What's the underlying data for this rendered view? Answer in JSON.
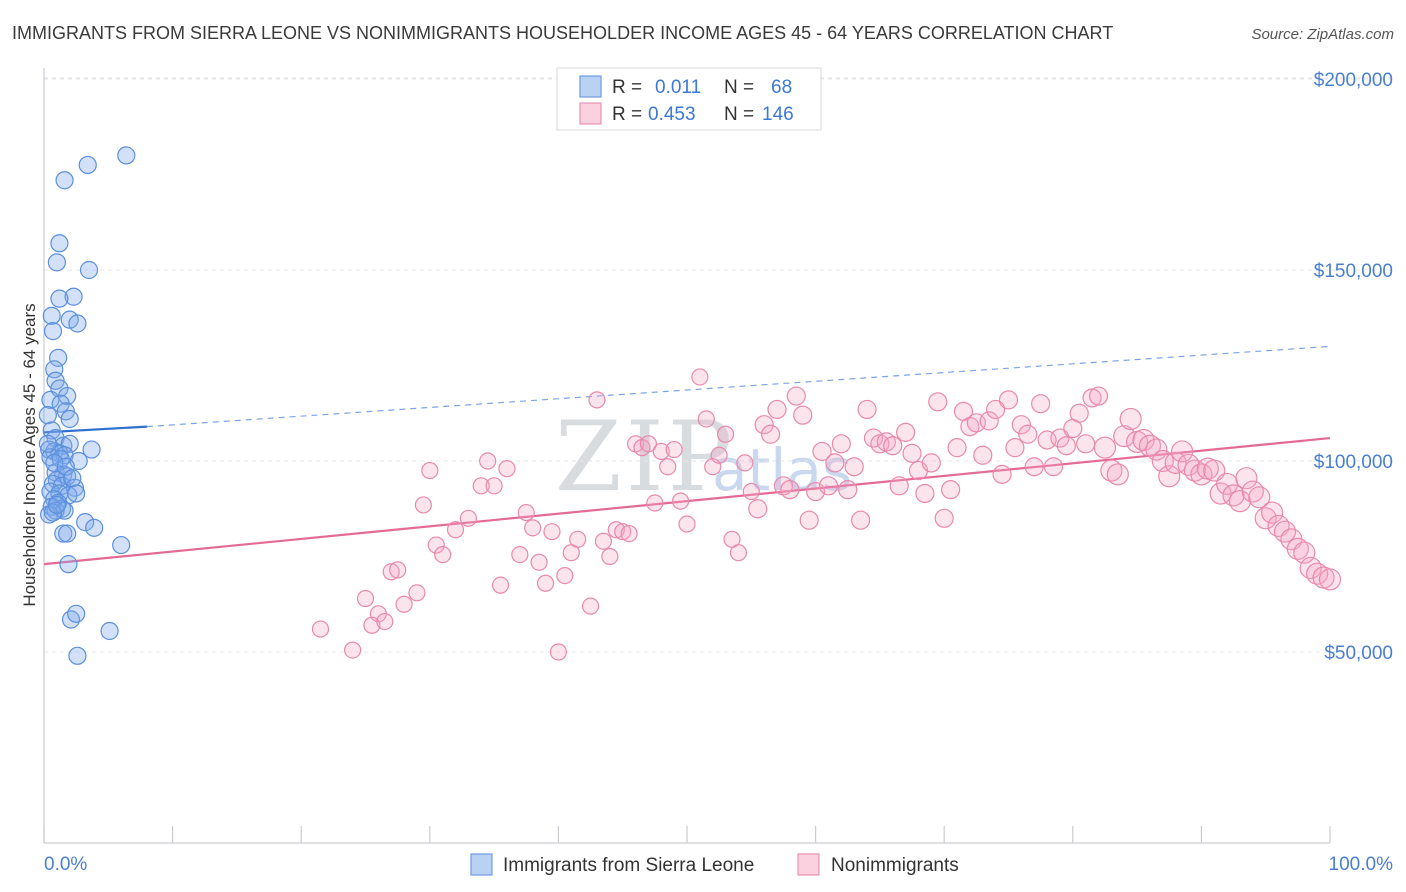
{
  "chart_data": {
    "type": "scatter",
    "title": "IMMIGRANTS FROM SIERRA LEONE VS NONIMMIGRANTS HOUSEHOLDER INCOME AGES 45 - 64 YEARS CORRELATION CHART",
    "source": "Source: ZipAtlas.com",
    "ylabel": "Householder Income Ages 45 - 64 years",
    "xlim": [
      0,
      100
    ],
    "ylim": [
      0,
      210000
    ],
    "x_tick_labels": {
      "left": "0.0%",
      "right": "100.0%"
    },
    "y_ticks": [
      {
        "value": 200000,
        "label": "$200,000"
      },
      {
        "value": 150000,
        "label": "$150,000"
      },
      {
        "value": 100000,
        "label": "$100,000"
      },
      {
        "value": 50000,
        "label": "$50,000"
      }
    ],
    "watermark": {
      "zip": "ZIP",
      "atlas": "atlas"
    },
    "legend": {
      "rows": [
        {
          "r_label": "R =",
          "r_value": "0.011",
          "n_label": "N =",
          "n_value": "68",
          "color": "#a9c8f2"
        },
        {
          "r_label": "R =",
          "r_value": "0.453",
          "n_label": "N =",
          "n_value": "146",
          "color": "#f8bdd1"
        }
      ]
    },
    "series": [
      {
        "name": "Immigrants from Sierra Leone",
        "color": "#5b8fdc",
        "trend": {
          "solid": [
            [
              0,
              107500
            ],
            [
              8,
              109000
            ]
          ],
          "dashed": [
            [
              8,
              109000
            ],
            [
              100,
              130000
            ]
          ]
        },
        "points": [
          [
            6.4,
            180000
          ],
          [
            3.4,
            177500
          ],
          [
            1.6,
            173500
          ],
          [
            1.2,
            157000
          ],
          [
            3.5,
            150000
          ],
          [
            1.0,
            152000
          ],
          [
            2.3,
            143000
          ],
          [
            1.2,
            142500
          ],
          [
            2.0,
            137000
          ],
          [
            2.6,
            136000
          ],
          [
            0.6,
            138000
          ],
          [
            0.7,
            134000
          ],
          [
            1.1,
            127000
          ],
          [
            0.8,
            124000
          ],
          [
            0.9,
            121000
          ],
          [
            1.2,
            119000
          ],
          [
            0.5,
            116000
          ],
          [
            1.8,
            117000
          ],
          [
            1.3,
            115000
          ],
          [
            1.7,
            113000
          ],
          [
            2.0,
            111000
          ],
          [
            0.3,
            112000
          ],
          [
            0.6,
            108000
          ],
          [
            0.9,
            106000
          ],
          [
            1.5,
            104000
          ],
          [
            2.0,
            104500
          ],
          [
            0.4,
            103000
          ],
          [
            0.8,
            102500
          ],
          [
            1.2,
            102000
          ],
          [
            1.6,
            101500
          ],
          [
            0.5,
            101000
          ],
          [
            1.3,
            100500
          ],
          [
            3.7,
            103000
          ],
          [
            2.7,
            100000
          ],
          [
            0.9,
            97000
          ],
          [
            1.5,
            96500
          ],
          [
            1.8,
            96000
          ],
          [
            1.0,
            95000
          ],
          [
            0.7,
            94000
          ],
          [
            1.4,
            93500
          ],
          [
            2.4,
            93000
          ],
          [
            0.5,
            92000
          ],
          [
            1.2,
            91500
          ],
          [
            1.9,
            91000
          ],
          [
            0.8,
            90000
          ],
          [
            2.5,
            91500
          ],
          [
            1.1,
            89000
          ],
          [
            0.6,
            88000
          ],
          [
            1.4,
            87500
          ],
          [
            0.9,
            87000
          ],
          [
            1.6,
            87000
          ],
          [
            0.4,
            86000
          ],
          [
            0.7,
            86500
          ],
          [
            1.0,
            88500
          ],
          [
            3.2,
            84000
          ],
          [
            3.9,
            82500
          ],
          [
            1.5,
            81000
          ],
          [
            1.8,
            81000
          ],
          [
            6.0,
            78000
          ],
          [
            1.9,
            73000
          ],
          [
            2.1,
            58500
          ],
          [
            2.5,
            60000
          ],
          [
            5.1,
            55500
          ],
          [
            2.6,
            49000
          ],
          [
            0.8,
            99500
          ],
          [
            1.7,
            98500
          ],
          [
            0.3,
            104500
          ],
          [
            2.2,
            95500
          ]
        ]
      },
      {
        "name": "Nonimmigrants",
        "color": "#e889ab",
        "trend": {
          "solid": [
            [
              0,
              73000
            ],
            [
              100,
              106000
            ]
          ]
        },
        "points": [
          [
            21.5,
            56000
          ],
          [
            24.0,
            50500
          ],
          [
            25.0,
            64000
          ],
          [
            26.0,
            60000
          ],
          [
            25.5,
            57000
          ],
          [
            26.5,
            58000
          ],
          [
            27.0,
            71000
          ],
          [
            27.5,
            71500
          ],
          [
            28.0,
            62500
          ],
          [
            29.0,
            65500
          ],
          [
            29.5,
            88500
          ],
          [
            30.0,
            97500
          ],
          [
            30.5,
            78000
          ],
          [
            31.0,
            75500
          ],
          [
            32.0,
            82000
          ],
          [
            33.0,
            85000
          ],
          [
            34.0,
            93500
          ],
          [
            34.5,
            100000
          ],
          [
            35.0,
            93500
          ],
          [
            35.5,
            67500
          ],
          [
            36.0,
            98000
          ],
          [
            37.0,
            75500
          ],
          [
            37.5,
            86500
          ],
          [
            38.0,
            82500
          ],
          [
            38.5,
            73500
          ],
          [
            39.0,
            68000
          ],
          [
            39.5,
            81500
          ],
          [
            40.0,
            50000
          ],
          [
            40.5,
            70000
          ],
          [
            41.0,
            76000
          ],
          [
            41.5,
            79500
          ],
          [
            42.5,
            62000
          ],
          [
            43.0,
            116000
          ],
          [
            43.5,
            79000
          ],
          [
            44.0,
            75000
          ],
          [
            44.5,
            82000
          ],
          [
            45.0,
            81500
          ],
          [
            45.5,
            81000
          ],
          [
            46.0,
            104500
          ],
          [
            46.5,
            103500
          ],
          [
            47.0,
            104500
          ],
          [
            47.5,
            89000
          ],
          [
            48.0,
            102500
          ],
          [
            48.5,
            98500
          ],
          [
            49.0,
            103000
          ],
          [
            49.5,
            89500
          ],
          [
            50.0,
            83500
          ],
          [
            51.0,
            122000
          ],
          [
            51.5,
            111000
          ],
          [
            52.0,
            98500
          ],
          [
            52.5,
            101500
          ],
          [
            53.0,
            107000
          ],
          [
            53.5,
            79500
          ],
          [
            54.0,
            76000
          ],
          [
            54.5,
            99500
          ],
          [
            55.0,
            92000
          ],
          [
            55.5,
            87500
          ],
          [
            56.0,
            109500
          ],
          [
            56.5,
            107000
          ],
          [
            57.0,
            113500
          ],
          [
            57.5,
            93500
          ],
          [
            58.0,
            92500
          ],
          [
            58.5,
            117000
          ],
          [
            59.0,
            112000
          ],
          [
            59.5,
            84500
          ],
          [
            60.0,
            92000
          ],
          [
            60.5,
            102500
          ],
          [
            61.0,
            93500
          ],
          [
            61.5,
            99500
          ],
          [
            62.0,
            104500
          ],
          [
            62.5,
            92500
          ],
          [
            63.0,
            98500
          ],
          [
            63.5,
            84500
          ],
          [
            64.0,
            113500
          ],
          [
            64.5,
            106000
          ],
          [
            65.0,
            104500
          ],
          [
            65.5,
            105000
          ],
          [
            66.0,
            104000
          ],
          [
            66.5,
            93500
          ],
          [
            67.0,
            107500
          ],
          [
            67.5,
            102000
          ],
          [
            68.0,
            97500
          ],
          [
            68.5,
            91500
          ],
          [
            69.0,
            99500
          ],
          [
            69.5,
            115500
          ],
          [
            70.0,
            85000
          ],
          [
            70.5,
            92500
          ],
          [
            71.0,
            103500
          ],
          [
            71.5,
            113000
          ],
          [
            72.0,
            109000
          ],
          [
            72.5,
            110000
          ],
          [
            73.0,
            101500
          ],
          [
            73.5,
            110500
          ],
          [
            74.0,
            113500
          ],
          [
            74.5,
            96500
          ],
          [
            75.0,
            116000
          ],
          [
            75.5,
            103500
          ],
          [
            76.0,
            109500
          ],
          [
            76.5,
            107000
          ],
          [
            77.0,
            98500
          ],
          [
            77.5,
            115000
          ],
          [
            78.0,
            105500
          ],
          [
            78.5,
            98500
          ],
          [
            79.0,
            106000
          ],
          [
            79.5,
            104000
          ],
          [
            80.0,
            108500
          ],
          [
            80.5,
            112500
          ],
          [
            81.0,
            104500
          ],
          [
            81.5,
            116500
          ],
          [
            82.0,
            117000
          ],
          [
            82.5,
            103500
          ],
          [
            83.0,
            97500
          ],
          [
            83.5,
            96500
          ],
          [
            84.0,
            106500
          ],
          [
            84.5,
            111000
          ],
          [
            85.0,
            105000
          ],
          [
            85.5,
            105500
          ],
          [
            86.0,
            104000
          ],
          [
            86.5,
            103000
          ],
          [
            87.0,
            100000
          ],
          [
            87.5,
            96000
          ],
          [
            88.0,
            99500
          ],
          [
            88.5,
            102500
          ],
          [
            89.0,
            99000
          ],
          [
            89.5,
            97500
          ],
          [
            90.0,
            96500
          ],
          [
            90.5,
            98000
          ],
          [
            91.0,
            97500
          ],
          [
            91.5,
            91500
          ],
          [
            92.0,
            94000
          ],
          [
            92.5,
            91000
          ],
          [
            93.0,
            89500
          ],
          [
            93.5,
            95500
          ],
          [
            94.0,
            92000
          ],
          [
            94.5,
            90500
          ],
          [
            95.0,
            85000
          ],
          [
            95.5,
            86500
          ],
          [
            96.0,
            83000
          ],
          [
            96.5,
            81500
          ],
          [
            97.0,
            79500
          ],
          [
            97.5,
            77000
          ],
          [
            98.0,
            76000
          ],
          [
            98.5,
            72000
          ],
          [
            99.0,
            70500
          ],
          [
            99.5,
            69500
          ],
          [
            100.0,
            69000
          ]
        ]
      }
    ]
  }
}
